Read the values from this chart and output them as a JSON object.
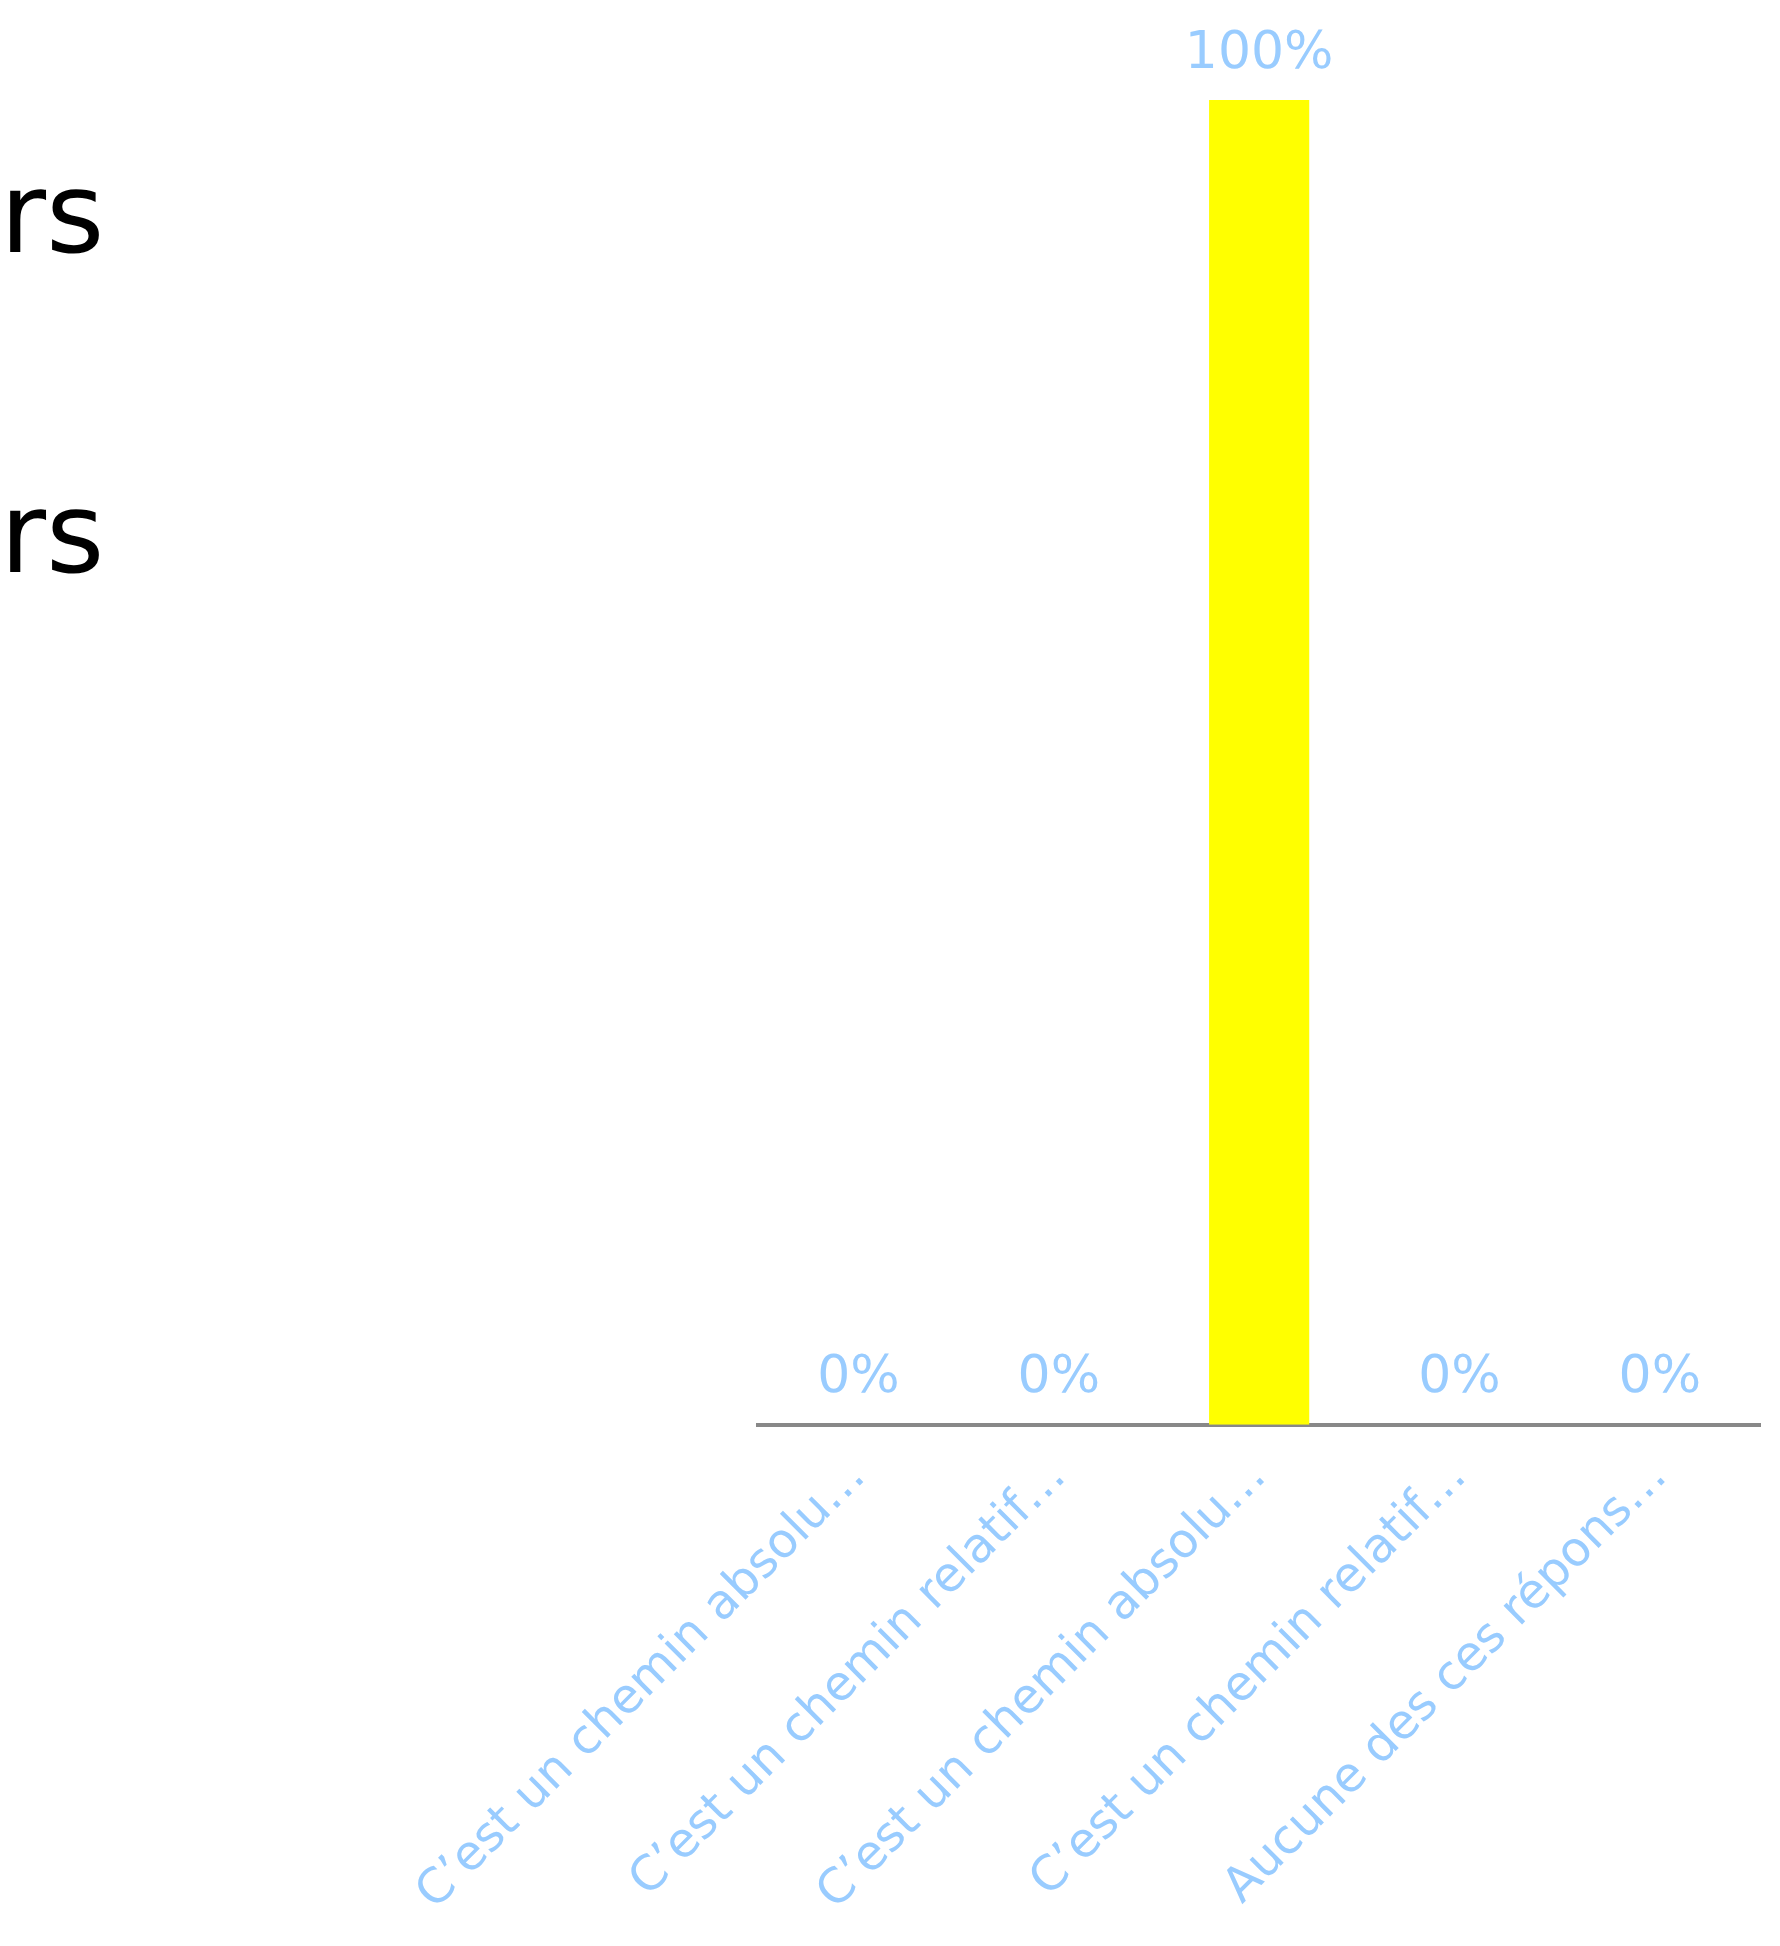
{
  "chart_data": {
    "type": "bar",
    "categories": [
      "C’est un chemin absolu…",
      "C’est un chemin relatif…",
      "C’est un chemin absolu…",
      "C’est un chemin relatif…",
      "Aucune des ces répons…"
    ],
    "values": [
      0,
      0,
      100,
      0,
      0
    ],
    "colors": [
      "#ff0000",
      "#ff9900",
      "#ffff00",
      "#99cc00",
      "#339966"
    ],
    "data_labels": true,
    "value_labels": [
      "0%",
      "0%",
      "100%",
      "0%",
      "0%"
    ],
    "annotations": [
      "rs",
      "rs"
    ],
    "grid": false,
    "legend": false,
    "tick_labels": "x"
  }
}
